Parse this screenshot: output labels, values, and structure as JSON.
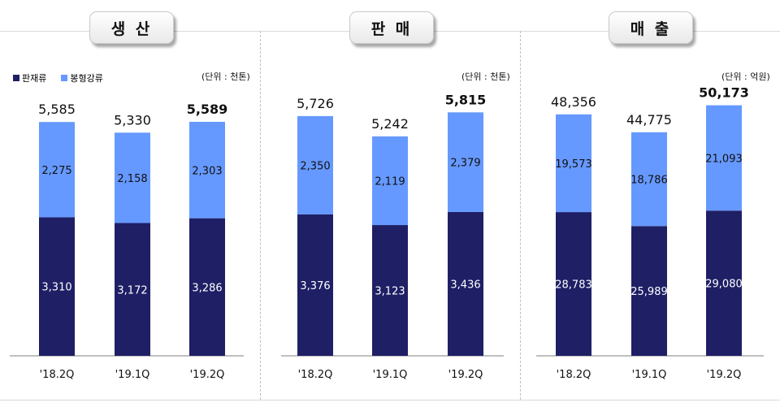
{
  "legend": {
    "bottom_label": "판재류",
    "top_label": "봉형강류",
    "bottom_color": "#1f1f66",
    "top_color": "#6699ff"
  },
  "chart_data": [
    {
      "type": "bar",
      "title": "생 산",
      "unit": "(단위 : 천톤)",
      "categories": [
        "'18.2Q",
        "'19.1Q",
        "'19.2Q"
      ],
      "series": [
        {
          "name": "판재류",
          "values": [
            3310,
            3172,
            3286
          ]
        },
        {
          "name": "봉형강류",
          "values": [
            2275,
            2158,
            2303
          ]
        }
      ],
      "totals": [
        5585,
        5330,
        5589
      ],
      "bottom_labels": [
        "3,310",
        "3,172",
        "3,286"
      ],
      "top_labels": [
        "2,275",
        "2,158",
        "2,303"
      ],
      "total_labels": [
        "5,585",
        "5,330",
        "5,589"
      ],
      "ylim": [
        0,
        6500
      ]
    },
    {
      "type": "bar",
      "title": "판 매",
      "unit": "(단위 : 천톤)",
      "categories": [
        "'18.2Q",
        "'19.1Q",
        "'19.2Q"
      ],
      "series": [
        {
          "name": "판재류",
          "values": [
            3376,
            3123,
            3436
          ]
        },
        {
          "name": "봉형강류",
          "values": [
            2350,
            2119,
            2379
          ]
        }
      ],
      "totals": [
        5726,
        5242,
        5815
      ],
      "bottom_labels": [
        "3,376",
        "3,123",
        "3,436"
      ],
      "top_labels": [
        "2,350",
        "2,119",
        "2,379"
      ],
      "total_labels": [
        "5,726",
        "5,242",
        "5,815"
      ],
      "ylim": [
        0,
        6500
      ]
    },
    {
      "type": "bar",
      "title": "매 출",
      "unit": "(단위 : 억원)",
      "categories": [
        "'18.2Q",
        "'19.1Q",
        "'19.2Q"
      ],
      "series": [
        {
          "name": "판재류",
          "values": [
            28783,
            25989,
            29080
          ]
        },
        {
          "name": "봉형강류",
          "values": [
            19573,
            18786,
            21093
          ]
        }
      ],
      "totals": [
        48356,
        44775,
        50173
      ],
      "bottom_labels": [
        "28,783",
        "25,989",
        "29,080"
      ],
      "top_labels": [
        "19,573",
        "18,786",
        "21,093"
      ],
      "total_labels": [
        "48,356",
        "44,775",
        "50,173"
      ],
      "ylim": [
        0,
        54500
      ]
    }
  ]
}
